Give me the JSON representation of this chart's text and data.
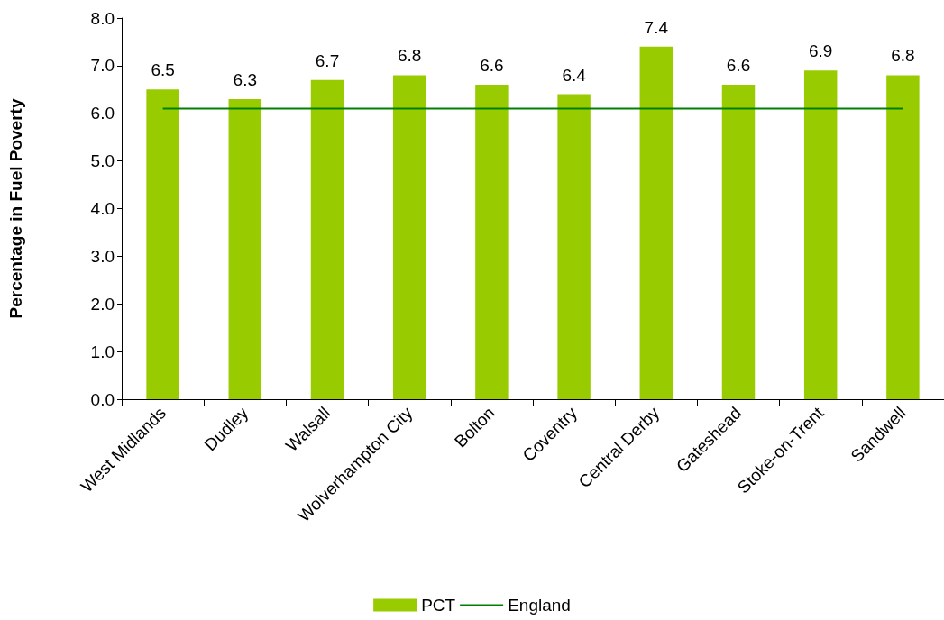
{
  "chart_data": {
    "type": "bar",
    "ylabel": "Percentage in Fuel Poverty",
    "categories": [
      "West Midlands",
      "Dudley",
      "Walsall",
      "Wolverhampton City",
      "Bolton",
      "Coventry",
      "Central Derby",
      "Gateshead",
      "Stoke-on-Trent",
      "Sandwell"
    ],
    "series": [
      {
        "name": "PCT",
        "color": "#99cc00",
        "values": [
          6.5,
          6.3,
          6.7,
          6.8,
          6.6,
          6.4,
          7.4,
          6.6,
          6.9,
          6.8
        ],
        "value_labels": [
          "6.5",
          "6.3",
          "6.7",
          "6.8",
          "6.6",
          "6.4",
          "7.4",
          "6.6",
          "6.9",
          "6.8"
        ]
      },
      {
        "name": "England",
        "type": "line",
        "color": "#008000",
        "values": [
          6.1,
          6.1,
          6.1,
          6.1,
          6.1,
          6.1,
          6.1,
          6.1,
          6.1,
          6.1
        ]
      }
    ],
    "ylim": [
      0,
      8
    ],
    "yticks": [
      {
        "value": 0,
        "label": "0.0"
      },
      {
        "value": 1,
        "label": "1.0"
      },
      {
        "value": 2,
        "label": "2.0"
      },
      {
        "value": 3,
        "label": "3.0"
      },
      {
        "value": 4,
        "label": "4.0"
      },
      {
        "value": 5,
        "label": "5.0"
      },
      {
        "value": 6,
        "label": "6.0"
      },
      {
        "value": 7,
        "label": "7.0"
      },
      {
        "value": 8,
        "label": "8.0"
      }
    ],
    "grid": false,
    "legend": "bottom",
    "marker": "none"
  }
}
